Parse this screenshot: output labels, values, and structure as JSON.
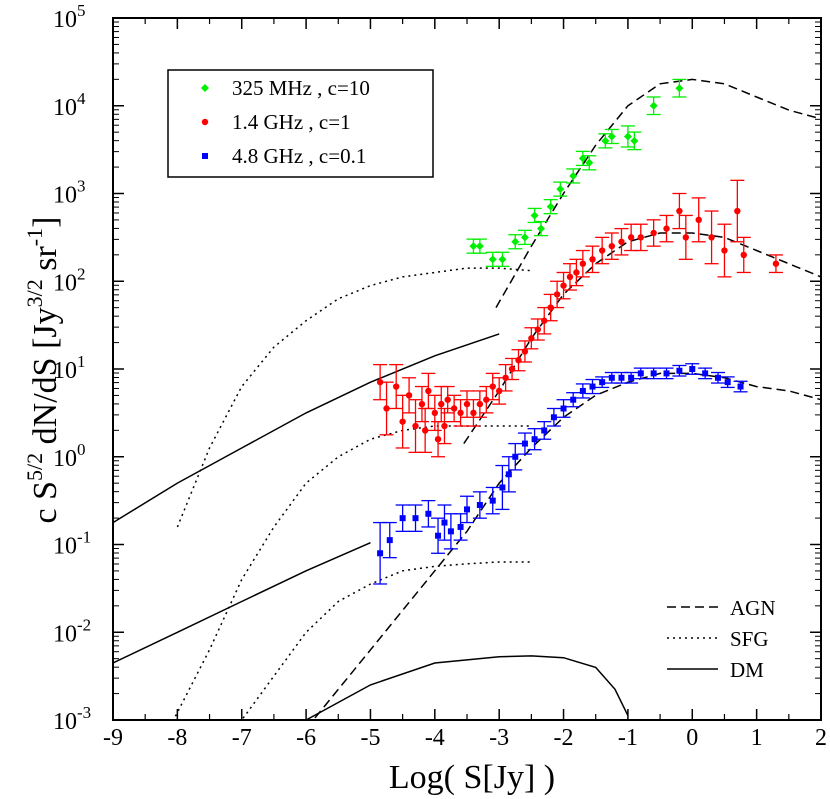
{
  "chart_data": {
    "type": "scatter",
    "title": "",
    "xlabel": "Log( S[Jy] )",
    "ylabel": "c S^{5/2} dN/dS  [Jy^{3/2} sr^{-1}]",
    "ylabel_parts": {
      "c": "c S",
      "s_exp": "5/2",
      "dnds": " dN/dS  [Jy",
      "jy_exp": "3/2",
      "sr": " sr",
      "sr_exp": "-1",
      "close": "]"
    },
    "xlim": [
      -9,
      2
    ],
    "ylim_log10": [
      -3,
      5
    ],
    "x_ticks": [
      "-9",
      "-8",
      "-7",
      "-6",
      "-5",
      "-4",
      "-3",
      "-2",
      "-1",
      "0",
      "1",
      "2"
    ],
    "x_tick_values": [
      -9,
      -8,
      -7,
      -6,
      -5,
      -4,
      -3,
      -2,
      -1,
      0,
      1,
      2
    ],
    "y_ticks": [
      {
        "exp": -3,
        "base": "10",
        "sup": "-3"
      },
      {
        "exp": -2,
        "base": "10",
        "sup": "-2"
      },
      {
        "exp": -1,
        "base": "10",
        "sup": "-1"
      },
      {
        "exp": 0,
        "base": "10",
        "sup": "0"
      },
      {
        "exp": 1,
        "base": "10",
        "sup": "1"
      },
      {
        "exp": 2,
        "base": "10",
        "sup": "2"
      },
      {
        "exp": 3,
        "base": "10",
        "sup": "3"
      },
      {
        "exp": 4,
        "base": "10",
        "sup": "4"
      },
      {
        "exp": 5,
        "base": "10",
        "sup": "5"
      }
    ],
    "legend": {
      "placement": "top-left",
      "entries": [
        {
          "label": "325 MHz , c=10",
          "color": "#00ee00",
          "marker": "diamond"
        },
        {
          "label": "1.4 GHz , c=1",
          "color": "#ff0000",
          "marker": "circle"
        },
        {
          "label": "4.8 GHz , c=0.1",
          "color": "#0000ff",
          "marker": "square"
        }
      ]
    },
    "line_legend": {
      "placement": "bottom-right",
      "entries": [
        {
          "label": "AGN",
          "style": "dashed"
        },
        {
          "label": "SFG",
          "style": "dotted"
        },
        {
          "label": "DM",
          "style": "solid"
        }
      ]
    },
    "series": [
      {
        "name": "325 MHz , c=10",
        "color": "#00ee00",
        "marker": "diamond",
        "points": [
          {
            "x": -3.4,
            "y": 2.4,
            "e": 0.08
          },
          {
            "x": -3.3,
            "y": 2.4,
            "e": 0.08
          },
          {
            "x": -3.1,
            "y": 2.25,
            "e": 0.08
          },
          {
            "x": -2.95,
            "y": 2.25,
            "e": 0.08
          },
          {
            "x": -2.75,
            "y": 2.45,
            "e": 0.08
          },
          {
            "x": -2.6,
            "y": 2.5,
            "e": 0.08
          },
          {
            "x": -2.45,
            "y": 2.75,
            "e": 0.08
          },
          {
            "x": -2.35,
            "y": 2.6,
            "e": 0.08
          },
          {
            "x": -2.2,
            "y": 2.85,
            "e": 0.08
          },
          {
            "x": -2.05,
            "y": 3.05,
            "e": 0.08
          },
          {
            "x": -1.85,
            "y": 3.2,
            "e": 0.08
          },
          {
            "x": -1.7,
            "y": 3.4,
            "e": 0.08
          },
          {
            "x": -1.6,
            "y": 3.35,
            "e": 0.08
          },
          {
            "x": -1.35,
            "y": 3.6,
            "e": 0.08
          },
          {
            "x": -1.25,
            "y": 3.65,
            "e": 0.08
          },
          {
            "x": -1.0,
            "y": 3.65,
            "e": 0.12
          },
          {
            "x": -0.9,
            "y": 3.6,
            "e": 0.1
          },
          {
            "x": -0.6,
            "y": 4.0,
            "e": 0.1
          },
          {
            "x": -0.2,
            "y": 4.2,
            "e": 0.1
          }
        ]
      },
      {
        "name": "1.4 GHz , c=1",
        "color": "#ff0000",
        "marker": "circle",
        "points": [
          {
            "x": -4.85,
            "y": 0.85,
            "e": 0.2
          },
          {
            "x": -4.75,
            "y": 0.55,
            "e": 0.3
          },
          {
            "x": -4.6,
            "y": 0.8,
            "e": 0.25
          },
          {
            "x": -4.5,
            "y": 0.4,
            "e": 0.3
          },
          {
            "x": -4.4,
            "y": 0.7,
            "e": 0.2
          },
          {
            "x": -4.3,
            "y": 0.35,
            "e": 0.3
          },
          {
            "x": -4.2,
            "y": 0.6,
            "e": 0.2
          },
          {
            "x": -4.15,
            "y": 0.3,
            "e": 0.25
          },
          {
            "x": -4.1,
            "y": 0.75,
            "e": 0.2
          },
          {
            "x": -4.0,
            "y": 0.5,
            "e": 0.2
          },
          {
            "x": -3.95,
            "y": 0.2,
            "e": 0.2
          },
          {
            "x": -3.9,
            "y": 0.6,
            "e": 0.2
          },
          {
            "x": -3.85,
            "y": 0.35,
            "e": 0.2
          },
          {
            "x": -3.8,
            "y": 0.65,
            "e": 0.15
          },
          {
            "x": -3.7,
            "y": 0.55,
            "e": 0.15
          },
          {
            "x": -3.6,
            "y": 0.5,
            "e": 0.15
          },
          {
            "x": -3.5,
            "y": 0.6,
            "e": 0.15
          },
          {
            "x": -3.4,
            "y": 0.5,
            "e": 0.15
          },
          {
            "x": -3.3,
            "y": 0.6,
            "e": 0.15
          },
          {
            "x": -3.2,
            "y": 0.65,
            "e": 0.15
          },
          {
            "x": -3.1,
            "y": 0.8,
            "e": 0.15
          },
          {
            "x": -3.0,
            "y": 0.75,
            "e": 0.15
          },
          {
            "x": -2.9,
            "y": 0.9,
            "e": 0.15
          },
          {
            "x": -2.8,
            "y": 1.0,
            "e": 0.12
          },
          {
            "x": -2.7,
            "y": 1.1,
            "e": 0.12
          },
          {
            "x": -2.6,
            "y": 1.2,
            "e": 0.12
          },
          {
            "x": -2.5,
            "y": 1.35,
            "e": 0.12
          },
          {
            "x": -2.4,
            "y": 1.45,
            "e": 0.12
          },
          {
            "x": -2.3,
            "y": 1.55,
            "e": 0.15
          },
          {
            "x": -2.2,
            "y": 1.7,
            "e": 0.15
          },
          {
            "x": -2.1,
            "y": 1.85,
            "e": 0.15
          },
          {
            "x": -2.0,
            "y": 1.95,
            "e": 0.15
          },
          {
            "x": -1.9,
            "y": 2.05,
            "e": 0.15
          },
          {
            "x": -1.8,
            "y": 2.1,
            "e": 0.15
          },
          {
            "x": -1.7,
            "y": 2.2,
            "e": 0.15
          },
          {
            "x": -1.55,
            "y": 2.25,
            "e": 0.15
          },
          {
            "x": -1.4,
            "y": 2.35,
            "e": 0.15
          },
          {
            "x": -1.25,
            "y": 2.4,
            "e": 0.15
          },
          {
            "x": -1.1,
            "y": 2.45,
            "e": 0.15
          },
          {
            "x": -0.95,
            "y": 2.5,
            "e": 0.15
          },
          {
            "x": -0.8,
            "y": 2.5,
            "e": 0.15
          },
          {
            "x": -0.6,
            "y": 2.55,
            "e": 0.15
          },
          {
            "x": -0.4,
            "y": 2.6,
            "e": 0.15
          },
          {
            "x": -0.2,
            "y": 2.8,
            "e": 0.2
          },
          {
            "x": -0.1,
            "y": 2.5,
            "e": 0.25
          },
          {
            "x": 0.1,
            "y": 2.7,
            "e": 0.25
          },
          {
            "x": 0.3,
            "y": 2.5,
            "e": 0.3
          },
          {
            "x": 0.5,
            "y": 2.35,
            "e": 0.3
          },
          {
            "x": 0.7,
            "y": 2.8,
            "e": 0.35
          },
          {
            "x": 0.8,
            "y": 2.3,
            "e": 0.2
          },
          {
            "x": 1.3,
            "y": 2.2,
            "e": 0.1
          }
        ]
      },
      {
        "name": "4.8 GHz , c=0.1",
        "color": "#0000ff",
        "marker": "square",
        "points": [
          {
            "x": -4.85,
            "y": -1.1,
            "e": 0.35
          },
          {
            "x": -4.7,
            "y": -0.95,
            "e": 0.2
          },
          {
            "x": -4.5,
            "y": -0.7,
            "e": 0.15
          },
          {
            "x": -4.3,
            "y": -0.7,
            "e": 0.15
          },
          {
            "x": -4.1,
            "y": -0.65,
            "e": 0.15
          },
          {
            "x": -3.95,
            "y": -0.9,
            "e": 0.2
          },
          {
            "x": -3.85,
            "y": -0.75,
            "e": 0.2
          },
          {
            "x": -3.75,
            "y": -0.85,
            "e": 0.2
          },
          {
            "x": -3.6,
            "y": -0.8,
            "e": 0.15
          },
          {
            "x": -3.5,
            "y": -0.6,
            "e": 0.15
          },
          {
            "x": -3.3,
            "y": -0.55,
            "e": 0.15
          },
          {
            "x": -3.1,
            "y": -0.5,
            "e": 0.15
          },
          {
            "x": -2.95,
            "y": -0.35,
            "e": 0.25
          },
          {
            "x": -2.85,
            "y": -0.2,
            "e": 0.2
          },
          {
            "x": -2.75,
            "y": 0.0,
            "e": 0.15
          },
          {
            "x": -2.6,
            "y": 0.15,
            "e": 0.12
          },
          {
            "x": -2.45,
            "y": 0.2,
            "e": 0.12
          },
          {
            "x": -2.3,
            "y": 0.3,
            "e": 0.1
          },
          {
            "x": -2.15,
            "y": 0.45,
            "e": 0.1
          },
          {
            "x": -2.0,
            "y": 0.55,
            "e": 0.1
          },
          {
            "x": -1.85,
            "y": 0.65,
            "e": 0.08
          },
          {
            "x": -1.7,
            "y": 0.75,
            "e": 0.08
          },
          {
            "x": -1.55,
            "y": 0.8,
            "e": 0.08
          },
          {
            "x": -1.4,
            "y": 0.85,
            "e": 0.06
          },
          {
            "x": -1.25,
            "y": 0.9,
            "e": 0.06
          },
          {
            "x": -1.1,
            "y": 0.9,
            "e": 0.06
          },
          {
            "x": -0.95,
            "y": 0.9,
            "e": 0.06
          },
          {
            "x": -0.8,
            "y": 0.95,
            "e": 0.06
          },
          {
            "x": -0.6,
            "y": 0.95,
            "e": 0.06
          },
          {
            "x": -0.4,
            "y": 0.95,
            "e": 0.06
          },
          {
            "x": -0.2,
            "y": 0.98,
            "e": 0.06
          },
          {
            "x": 0.0,
            "y": 1.0,
            "e": 0.06
          },
          {
            "x": 0.2,
            "y": 0.95,
            "e": 0.06
          },
          {
            "x": 0.4,
            "y": 0.9,
            "e": 0.06
          },
          {
            "x": 0.55,
            "y": 0.85,
            "e": 0.06
          },
          {
            "x": 0.75,
            "y": 0.8,
            "e": 0.06
          }
        ]
      }
    ],
    "curves": [
      {
        "name": "AGN 325 MHz",
        "style": "dashed",
        "x": [
          -3.05,
          -2.5,
          -2.0,
          -1.5,
          -1.0,
          -0.5,
          0.0,
          0.5,
          1.0,
          1.5,
          2.0
        ],
        "y": [
          1.7,
          2.4,
          3.0,
          3.55,
          4.0,
          4.25,
          4.3,
          4.25,
          4.1,
          3.95,
          3.85
        ]
      },
      {
        "name": "AGN 1.4 GHz",
        "style": "dashed",
        "x": [
          -3.55,
          -3.0,
          -2.5,
          -2.0,
          -1.5,
          -1.0,
          -0.5,
          0.0,
          0.5,
          1.0,
          1.5,
          2.0
        ],
        "y": [
          0.15,
          0.75,
          1.35,
          1.85,
          2.2,
          2.45,
          2.55,
          2.55,
          2.5,
          2.35,
          2.2,
          2.05
        ]
      },
      {
        "name": "AGN 4.8 GHz",
        "style": "dashed",
        "x": [
          -6.0,
          -5.0,
          -4.0,
          -3.5,
          -3.0,
          -2.5,
          -2.0,
          -1.5,
          -1.0,
          -0.5,
          0.0,
          0.5,
          1.0,
          1.5,
          2.0
        ],
        "y": [
          -3.1,
          -2.2,
          -1.3,
          -0.85,
          -0.3,
          0.1,
          0.45,
          0.7,
          0.85,
          0.95,
          0.95,
          0.9,
          0.8,
          0.75,
          0.65
        ]
      },
      {
        "name": "SFG upper",
        "style": "dotted",
        "x": [
          -8.0,
          -7.5,
          -7.0,
          -6.5,
          -6.0,
          -5.5,
          -5.0,
          -4.5,
          -4.0,
          -3.5,
          -3.0,
          -2.5
        ],
        "y": [
          -0.8,
          0.1,
          0.8,
          1.25,
          1.55,
          1.8,
          1.95,
          2.05,
          2.1,
          2.15,
          2.15,
          2.12
        ]
      },
      {
        "name": "SFG middle",
        "style": "dotted",
        "x": [
          -8.2,
          -7.5,
          -7.0,
          -6.5,
          -6.0,
          -5.5,
          -5.0,
          -4.5,
          -4.0,
          -3.5,
          -3.0,
          -2.5
        ],
        "y": [
          -3.2,
          -2.2,
          -1.4,
          -0.8,
          -0.3,
          0.0,
          0.2,
          0.3,
          0.35,
          0.35,
          0.35,
          0.35
        ]
      },
      {
        "name": "SFG lower",
        "style": "dotted",
        "x": [
          -7.2,
          -6.5,
          -6.0,
          -5.5,
          -5.0,
          -4.5,
          -4.0,
          -3.5,
          -3.0,
          -2.5
        ],
        "y": [
          -3.2,
          -2.5,
          -2.0,
          -1.65,
          -1.45,
          -1.3,
          -1.25,
          -1.22,
          -1.2,
          -1.2
        ]
      },
      {
        "name": "DM 1.4 GHz",
        "style": "solid",
        "x": [
          -9.0,
          -8.0,
          -7.0,
          -6.0,
          -5.0,
          -4.0,
          -3.0
        ],
        "y": [
          -0.75,
          -0.3,
          0.1,
          0.5,
          0.85,
          1.15,
          1.4
        ]
      },
      {
        "name": "DM 4.8 GHz",
        "style": "solid",
        "x": [
          -9.0,
          -8.0,
          -7.0,
          -6.0,
          -5.0
        ],
        "y": [
          -2.35,
          -2.0,
          -1.65,
          -1.3,
          -0.98
        ]
      },
      {
        "name": "DM lower",
        "style": "solid",
        "x": [
          -6.0,
          -5.0,
          -4.0,
          -3.0,
          -2.5,
          -2.0,
          -1.5,
          -1.2,
          -1.0
        ],
        "y": [
          -3.0,
          -2.6,
          -2.35,
          -2.28,
          -2.27,
          -2.29,
          -2.4,
          -2.65,
          -2.95
        ]
      }
    ]
  }
}
